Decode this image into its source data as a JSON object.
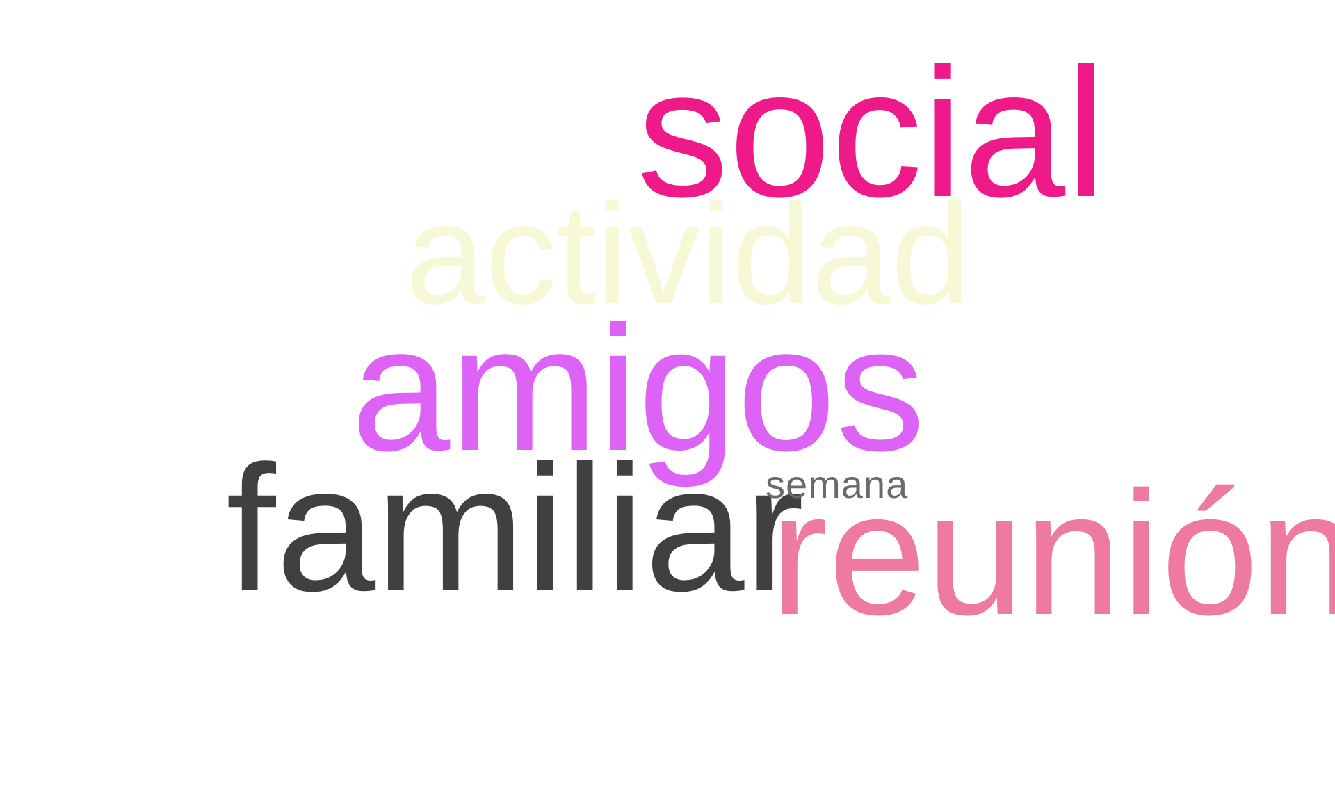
{
  "words": [
    {
      "text": "social",
      "color": "#ee1a8a"
    },
    {
      "text": "actividad",
      "color": "#f7f8d6"
    },
    {
      "text": "amigos",
      "color": "#dd63f6"
    },
    {
      "text": "familiar",
      "color": "#404040"
    },
    {
      "text": "semana",
      "color": "#6a6a6a"
    },
    {
      "text": "reunión",
      "color": "#ee7aa0"
    }
  ]
}
